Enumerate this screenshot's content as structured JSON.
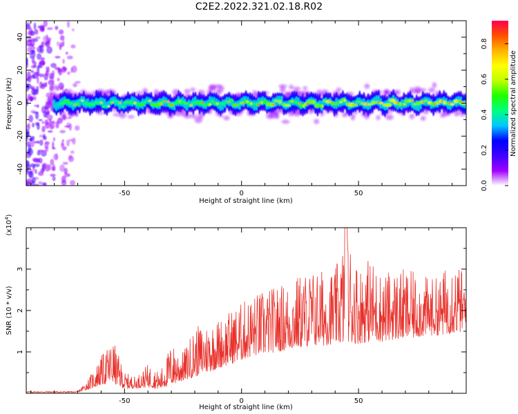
{
  "title": "C2E2.2022.321.02.18.R02",
  "chart_data": [
    {
      "type": "heatmap",
      "name": "spectrogram",
      "xlabel": "Height of straight line (km)",
      "ylabel": "Frequency (Hz)",
      "xlim": [
        -92,
        96
      ],
      "ylim": [
        -50,
        50
      ],
      "x_ticks": [
        -50,
        0,
        50
      ],
      "y_ticks": [
        -40,
        -20,
        0,
        20,
        40
      ],
      "colorbar": {
        "label": "Normalized spectral amplitude",
        "range": [
          0.0,
          0.93
        ],
        "ticks": [
          "0.0",
          "0.2",
          "0.4",
          "0.6",
          "0.8"
        ],
        "tick_values": [
          0.0,
          0.2,
          0.4,
          0.6,
          0.8
        ],
        "colors": [
          "#ffffff",
          "#a000ff",
          "#3c00ff",
          "#0000ff",
          "#00c8ff",
          "#00ff80",
          "#20ff00",
          "#c0ff00",
          "#ffff00",
          "#ffb400",
          "#ff5000",
          "#ff0050"
        ]
      },
      "signal_band": {
        "description": "band centered near 0 Hz, width about ±5 Hz",
        "center_hz": 0,
        "halfwidth_hz": 4,
        "starts_at_km": -80,
        "noise_region_km": [
          -92,
          -72
        ]
      }
    },
    {
      "type": "line",
      "name": "snr",
      "xlabel": "Height of straight line (km)",
      "ylabel": "SNR (10 * v/v)",
      "y_scale_label": "(x10",
      "y_scale_exp": "4",
      "y_scale_close": ")",
      "xlim": [
        -92,
        96
      ],
      "ylim": [
        0,
        4.0
      ],
      "x_ticks": [
        -50,
        0,
        50
      ],
      "y_ticks": [
        1,
        2,
        3
      ],
      "color": "#e8302a",
      "envelope": {
        "x": [
          -92,
          -70,
          -65,
          -60,
          -55,
          -50,
          -45,
          -40,
          -35,
          -30,
          -25,
          -20,
          -15,
          -10,
          -5,
          0,
          5,
          10,
          15,
          20,
          25,
          30,
          35,
          40,
          45,
          50,
          55,
          60,
          65,
          70,
          75,
          80,
          85,
          90,
          96
        ],
        "baseline": [
          0.02,
          0.02,
          0.1,
          0.2,
          0.25,
          0.1,
          0.12,
          0.15,
          0.1,
          0.2,
          0.3,
          0.4,
          0.5,
          0.6,
          0.7,
          0.8,
          0.9,
          0.95,
          1.0,
          1.05,
          1.1,
          1.15,
          1.15,
          1.2,
          1.2,
          1.2,
          1.25,
          1.25,
          1.3,
          1.3,
          1.35,
          1.4,
          1.4,
          1.45,
          1.5
        ],
        "peak": [
          0.05,
          0.05,
          0.4,
          0.9,
          1.3,
          0.5,
          0.4,
          0.7,
          0.5,
          1.2,
          1.0,
          1.6,
          1.7,
          1.8,
          2.0,
          2.2,
          2.4,
          2.5,
          2.6,
          2.7,
          2.9,
          3.0,
          3.0,
          3.0,
          4.0,
          3.1,
          3.3,
          2.9,
          3.0,
          3.0,
          2.9,
          2.8,
          2.8,
          3.4,
          2.8
        ]
      }
    }
  ]
}
